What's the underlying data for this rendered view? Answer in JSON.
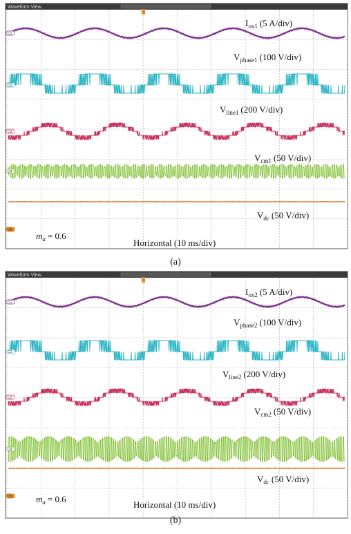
{
  "panels": [
    {
      "header": "Waveform View",
      "traces": [
        {
          "channel": "C1",
          "main": "I",
          "sub": "ox1",
          "scale": "(5 A/div)"
        },
        {
          "channel": "C2",
          "main": "V",
          "sub": "phase1",
          "scale": "(100 V/div)"
        },
        {
          "channel": "C3",
          "main": "V",
          "sub": "line1",
          "scale": "(200 V/div)"
        },
        {
          "channel": "C4",
          "main": "V",
          "sub": "cm1",
          "scale": "(50 V/div)"
        },
        {
          "channel": "C5",
          "main": "V",
          "sub": "dc",
          "scale": "(50 V/div)"
        }
      ],
      "modulation": {
        "main": "m",
        "sub": "a",
        "text": "= 0.6"
      },
      "horizontal": "Horizontal (10 ms/div)",
      "caption": "(a)"
    },
    {
      "header": "Waveform View",
      "traces": [
        {
          "channel": "C1",
          "main": "I",
          "sub": "ox2",
          "scale": "(5 A/div)"
        },
        {
          "channel": "C2",
          "main": "V",
          "sub": "phase2",
          "scale": "(100 V/div)"
        },
        {
          "channel": "C3",
          "main": "V",
          "sub": "line2",
          "scale": "(200 V/div)"
        },
        {
          "channel": "C4",
          "main": "V",
          "sub": "cm2",
          "scale": "(50 V/div)"
        },
        {
          "channel": "C5",
          "main": "V",
          "sub": "dc",
          "scale": "(50 V/div)"
        }
      ],
      "modulation": {
        "main": "m",
        "sub": "a",
        "text": "= 0.6"
      },
      "horizontal": "Horizontal (10 ms/div)",
      "caption": "(b)"
    }
  ]
}
